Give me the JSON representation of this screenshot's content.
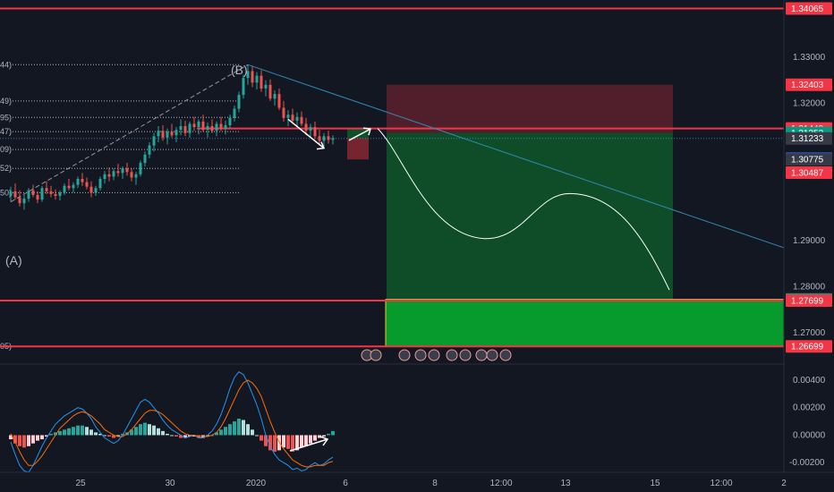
{
  "chart_data": {
    "type": "candlestick",
    "instrument_note": "",
    "price_axis": {
      "ylim": [
        1.2645,
        1.3425
      ],
      "ticks": [
        1.33,
        1.32,
        1.29,
        1.28,
        1.27
      ],
      "tick_labels": [
        "1.33000",
        "1.32000",
        "1.29000",
        "1.28000",
        "1.27000"
      ]
    },
    "time_axis": {
      "labels": [
        "25",
        "30",
        "2020",
        "6",
        "8",
        "12:00",
        "13",
        "15",
        "12:00",
        "2"
      ]
    },
    "wave_labels": [
      "(A)",
      "(B)"
    ],
    "fib_level_labels": [
      {
        "text": "44)",
        "price": 1.3284
      },
      {
        "text": "49)",
        "price": 1.3205
      },
      {
        "text": "95)",
        "price": 1.3169
      },
      {
        "text": "47)",
        "price": 1.3138
      },
      {
        "text": "09)",
        "price": 1.3099
      },
      {
        "text": "52)",
        "price": 1.3058
      },
      {
        "text": "50)",
        "price": 1.3005
      },
      {
        "text": "05)",
        "price": 1.267
      }
    ],
    "price_tags": [
      {
        "label": "1.34065",
        "price": 1.34065,
        "color": "#f23645"
      },
      {
        "label": "1.32403",
        "price": 1.32403,
        "color": "#f23645"
      },
      {
        "label": "1.31449",
        "price": 1.31449,
        "color": "#f23645"
      },
      {
        "label": "1.31352",
        "price": 1.31352,
        "color": "#089981"
      },
      {
        "label": "1.31233",
        "price": 1.31233,
        "color": "#363a45"
      },
      {
        "label": "1.30790",
        "price": 1.3079,
        "color": "#2962ff"
      },
      {
        "label": "1.30775",
        "price": 1.30775,
        "color": "#363a45"
      },
      {
        "label": "1.30487",
        "price": 1.30487,
        "color": "#f23645"
      },
      {
        "label": "1.27723",
        "price": 1.27723,
        "color": "#089981"
      },
      {
        "label": "1.27699",
        "price": 1.27699,
        "color": "#f23645"
      },
      {
        "label": "1.26699",
        "price": 1.26699,
        "color": "#f23645"
      }
    ],
    "horizontal_lines": [
      1.34065,
      1.31449,
      1.27699,
      1.26699
    ],
    "risk_reward_boxes": [
      {
        "entry": 1.31352,
        "stop": 1.32403,
        "target": 1.27723
      },
      {
        "entry": 1.31233,
        "stop": 1.30775,
        "target": 1.31449
      }
    ],
    "target_zone": {
      "top": 1.27723,
      "bottom": 1.26699
    },
    "projection_path_prices": [
      1.3145,
      1.3,
      1.2905,
      1.3003,
      1.2793
    ],
    "trendline": {
      "from": 1.3284,
      "to": 1.2885
    },
    "candles": [
      [
        1.2998,
        1.3018,
        1.2985,
        1.3008
      ],
      [
        1.3008,
        1.3025,
        1.299,
        1.2995
      ],
      [
        1.2995,
        1.301,
        1.2975,
        1.2982
      ],
      [
        1.2982,
        1.3,
        1.2968,
        1.2992
      ],
      [
        1.2992,
        1.3015,
        1.2985,
        1.301
      ],
      [
        1.301,
        1.3022,
        1.2995,
        1.3
      ],
      [
        1.3,
        1.3008,
        1.2982,
        1.299
      ],
      [
        1.299,
        1.302,
        1.2985,
        1.3015
      ],
      [
        1.3015,
        1.303,
        1.3002,
        1.3008
      ],
      [
        1.3008,
        1.302,
        1.2995,
        1.3002
      ],
      [
        1.3002,
        1.3012,
        1.299,
        1.2998
      ],
      [
        1.2998,
        1.301,
        1.2988,
        1.3005
      ],
      [
        1.3005,
        1.3025,
        1.3,
        1.302
      ],
      [
        1.302,
        1.3035,
        1.301,
        1.3015
      ],
      [
        1.3015,
        1.3028,
        1.3005,
        1.3022
      ],
      [
        1.3022,
        1.304,
        1.3015,
        1.3035
      ],
      [
        1.3035,
        1.3048,
        1.302,
        1.3028
      ],
      [
        1.3028,
        1.3038,
        1.3012,
        1.3018
      ],
      [
        1.3018,
        1.303,
        1.2995,
        1.3005
      ],
      [
        1.3005,
        1.302,
        1.2998,
        1.3015
      ],
      [
        1.3015,
        1.304,
        1.301,
        1.3035
      ],
      [
        1.3035,
        1.3052,
        1.3025,
        1.3045
      ],
      [
        1.3045,
        1.306,
        1.303,
        1.304
      ],
      [
        1.304,
        1.3058,
        1.3032,
        1.3052
      ],
      [
        1.3052,
        1.3068,
        1.304,
        1.3048
      ],
      [
        1.3048,
        1.3062,
        1.3035,
        1.3058
      ],
      [
        1.3058,
        1.307,
        1.3042,
        1.305
      ],
      [
        1.305,
        1.3058,
        1.303,
        1.3038
      ],
      [
        1.3038,
        1.305,
        1.3022,
        1.3045
      ],
      [
        1.3045,
        1.3075,
        1.304,
        1.307
      ],
      [
        1.307,
        1.3095,
        1.3062,
        1.3088
      ],
      [
        1.3088,
        1.3115,
        1.308,
        1.3108
      ],
      [
        1.3108,
        1.3135,
        1.3095,
        1.3128
      ],
      [
        1.3128,
        1.315,
        1.3115,
        1.314
      ],
      [
        1.314,
        1.3152,
        1.3118,
        1.3125
      ],
      [
        1.3125,
        1.3145,
        1.311,
        1.3138
      ],
      [
        1.3138,
        1.3155,
        1.3125,
        1.313
      ],
      [
        1.313,
        1.3148,
        1.3115,
        1.3142
      ],
      [
        1.3142,
        1.3165,
        1.313,
        1.315
      ],
      [
        1.315,
        1.3162,
        1.3128,
        1.3135
      ],
      [
        1.3135,
        1.316,
        1.3125,
        1.3155
      ],
      [
        1.3155,
        1.317,
        1.314,
        1.3148
      ],
      [
        1.3148,
        1.3165,
        1.3132,
        1.316
      ],
      [
        1.316,
        1.3175,
        1.3138,
        1.3142
      ],
      [
        1.3142,
        1.3158,
        1.3125,
        1.315
      ],
      [
        1.315,
        1.3165,
        1.3135,
        1.314
      ],
      [
        1.314,
        1.316,
        1.3128,
        1.3155
      ],
      [
        1.3155,
        1.317,
        1.314,
        1.3145
      ],
      [
        1.3145,
        1.3162,
        1.3132,
        1.3152
      ],
      [
        1.3152,
        1.3175,
        1.3145,
        1.3168
      ],
      [
        1.3168,
        1.3195,
        1.316,
        1.3188
      ],
      [
        1.3188,
        1.3225,
        1.318,
        1.3218
      ],
      [
        1.3218,
        1.3262,
        1.321,
        1.3255
      ],
      [
        1.3255,
        1.3284,
        1.324,
        1.327
      ],
      [
        1.327,
        1.3282,
        1.3235,
        1.3245
      ],
      [
        1.3245,
        1.3268,
        1.323,
        1.326
      ],
      [
        1.326,
        1.3272,
        1.3225,
        1.3232
      ],
      [
        1.3232,
        1.325,
        1.3215,
        1.324
      ],
      [
        1.324,
        1.3252,
        1.3205,
        1.321
      ],
      [
        1.321,
        1.3228,
        1.3195,
        1.322
      ],
      [
        1.322,
        1.3232,
        1.3185,
        1.319
      ],
      [
        1.319,
        1.3205,
        1.316,
        1.3168
      ],
      [
        1.3168,
        1.3185,
        1.315,
        1.3175
      ],
      [
        1.3175,
        1.3188,
        1.3155,
        1.3162
      ],
      [
        1.3162,
        1.318,
        1.3148,
        1.317
      ],
      [
        1.317,
        1.3182,
        1.315,
        1.3155
      ],
      [
        1.3155,
        1.3168,
        1.313,
        1.314
      ],
      [
        1.314,
        1.3155,
        1.3125,
        1.3148
      ],
      [
        1.3148,
        1.316,
        1.3122,
        1.3128
      ],
      [
        1.3128,
        1.3142,
        1.3108,
        1.3118
      ],
      [
        1.3118,
        1.3135,
        1.3105,
        1.3128
      ],
      [
        1.3128,
        1.314,
        1.3112,
        1.312
      ],
      [
        1.312,
        1.313,
        1.311,
        1.3124
      ]
    ],
    "macd_axis": {
      "ylim": [
        -0.0027,
        0.0051
      ],
      "ticks": [
        0.004,
        0.002,
        0.0,
        -0.002
      ],
      "tick_labels": [
        "0.00400",
        "0.00200",
        "0.00000",
        "-0.00200"
      ]
    },
    "macd_histogram": [
      -0.0003,
      -0.0006,
      -0.0008,
      -0.0009,
      -0.0008,
      -0.0006,
      -0.0004,
      -0.0003,
      -0.0001,
      0.0001,
      0.0002,
      0.0003,
      0.0004,
      0.0005,
      0.0006,
      0.0007,
      0.0007,
      0.0006,
      0.0004,
      0.0002,
      0.0001,
      0.0,
      -0.0001,
      -0.0002,
      -0.0001,
      0.0001,
      0.0002,
      0.0004,
      0.0006,
      0.0008,
      0.0009,
      0.0008,
      0.0007,
      0.0005,
      0.0003,
      0.0001,
      0.0,
      -0.0001,
      -0.0002,
      -0.0002,
      -0.0001,
      -0.0001,
      -0.0002,
      -0.0002,
      -0.0001,
      0.0,
      0.0002,
      0.0004,
      0.0006,
      0.0008,
      0.001,
      0.0012,
      0.0011,
      0.0008,
      0.0004,
      0.0,
      -0.0004,
      -0.0008,
      -0.0011,
      -0.0012,
      -0.0011,
      -0.0009,
      -0.001,
      -0.0012,
      -0.0011,
      -0.0009,
      -0.0008,
      -0.0006,
      -0.0004,
      -0.0002,
      -0.0001,
      0.0001,
      0.0003
    ],
    "macd_line": [
      -0.0005,
      -0.0014,
      -0.0022,
      -0.0026,
      -0.0027,
      -0.0022,
      -0.0015,
      -0.0008,
      -0.0002,
      0.0003,
      0.0008,
      0.0011,
      0.0014,
      0.0016,
      0.0018,
      0.002,
      0.0019,
      0.0016,
      0.0012,
      0.0006,
      0.0002,
      -0.0002,
      -0.0004,
      -0.0006,
      -0.0004,
      0.0,
      0.0006,
      0.0012,
      0.0018,
      0.0024,
      0.0026,
      0.0024,
      0.002,
      0.0016,
      0.0011,
      0.0007,
      0.0004,
      0.0002,
      0.0,
      -0.0002,
      -0.0001,
      0.0,
      -0.0002,
      -0.0002,
      0.0,
      0.0003,
      0.0008,
      0.0015,
      0.0024,
      0.0034,
      0.0042,
      0.0046,
      0.0044,
      0.0038,
      0.003,
      0.0022,
      0.0012,
      0.0,
      -0.0008,
      -0.0014,
      -0.0018,
      -0.002,
      -0.0022,
      -0.0025,
      -0.0024,
      -0.0026,
      -0.0025,
      -0.0022,
      -0.002,
      -0.0022,
      -0.0021,
      -0.0018,
      -0.0016
    ],
    "macd_signal": [
      0.0001,
      -0.0005,
      -0.0012,
      -0.0018,
      -0.0022,
      -0.0022,
      -0.0019,
      -0.0015,
      -0.001,
      -0.0005,
      0.0,
      0.0005,
      0.0008,
      0.0011,
      0.0014,
      0.0016,
      0.0017,
      0.0016,
      0.0014,
      0.0011,
      0.0008,
      0.0004,
      0.0002,
      0.0,
      -0.0001,
      -0.0001,
      0.0001,
      0.0004,
      0.0008,
      0.0012,
      0.0016,
      0.0018,
      0.0018,
      0.0017,
      0.0015,
      0.0012,
      0.0009,
      0.0006,
      0.0003,
      0.0001,
      0.0,
      0.0,
      -0.0001,
      -0.0001,
      -0.0001,
      0.0,
      0.0002,
      0.0006,
      0.0012,
      0.0019,
      0.0026,
      0.0033,
      0.0038,
      0.004,
      0.0038,
      0.0034,
      0.0028,
      0.0019,
      0.001,
      0.0002,
      -0.0005,
      -0.001,
      -0.0014,
      -0.0018,
      -0.002,
      -0.0022,
      -0.0023,
      -0.0023,
      -0.0022,
      -0.0022,
      -0.0022,
      -0.002,
      -0.0019
    ],
    "colors": {
      "background": "#131722",
      "up": "#26a69a",
      "down": "#ef5350",
      "macd": "#2196f3",
      "signal": "#ff6d00",
      "hist_up": "#26a69a",
      "hist_down": "#ef5350",
      "level": "#f23645",
      "trendline": "#2f8bb3"
    }
  }
}
